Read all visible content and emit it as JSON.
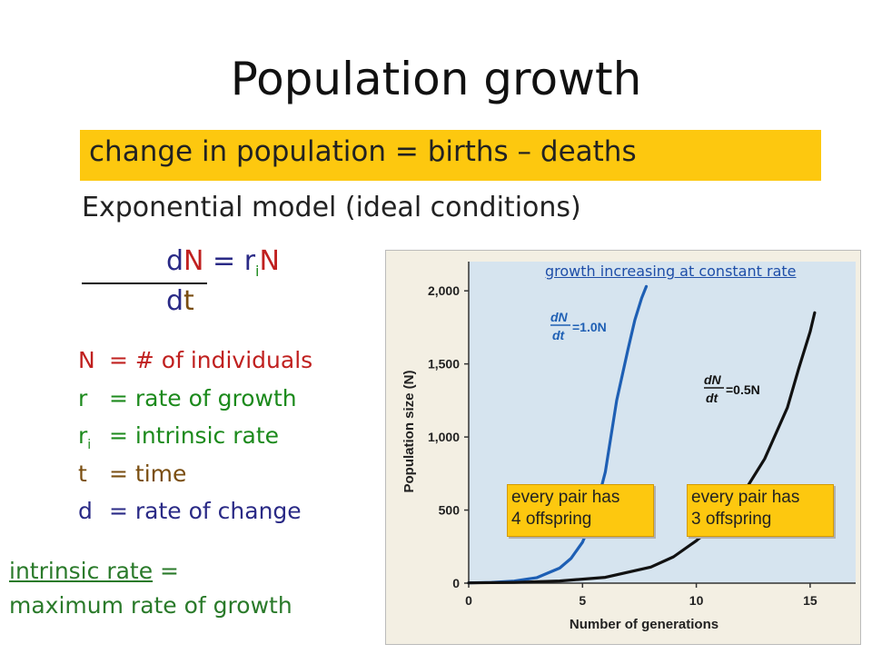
{
  "slide": {
    "title": "Population growth",
    "highlight": "change in population = births – deaths",
    "subtitle": "Exponential model (ideal conditions)",
    "equation": {
      "dN_d": "d",
      "dN_N": "N",
      "eq": " = r",
      "sub_i": "i",
      "N2": "N",
      "dt_d": "d",
      "dt_t": "t"
    },
    "definitions": [
      {
        "sym": "N",
        "sub": "",
        "text": "= # of individuals"
      },
      {
        "sym": "r",
        "sub": "",
        "text": "= rate of growth"
      },
      {
        "sym": "r",
        "sub": "i",
        "text": "= intrinsic rate"
      },
      {
        "sym": "t",
        "sub": "",
        "text": "= time"
      },
      {
        "sym": "d",
        "sub": "",
        "text": "= rate of change"
      }
    ],
    "intrinsic": {
      "term": "intrinsic rate",
      "eq": " =",
      "line2": "maximum rate of growth"
    },
    "growth_note": "growth increasing at constant rate",
    "callouts": [
      {
        "line1": "every pair has",
        "line2": "4 offspring"
      },
      {
        "line1": "every pair has",
        "line2": "3 offspring"
      }
    ],
    "colors": {
      "highlight": "#fdc80f",
      "blue_curve": "#1e5fb4",
      "black_curve": "#111111",
      "plot_bg": "#d6e4ef"
    }
  },
  "chart_data": {
    "type": "line",
    "xlabel": "Number of generations",
    "ylabel": "Population size (N)",
    "xlim": [
      0,
      17
    ],
    "ylim": [
      0,
      2200
    ],
    "xticks": [
      0,
      5,
      10,
      15
    ],
    "yticks": [
      0,
      500,
      1000,
      1500,
      2000
    ],
    "ytick_labels": [
      "0",
      "500",
      "1,000",
      "1,500",
      "2,000"
    ],
    "series": [
      {
        "name": "dN/dt = 1.0N",
        "label_main": "dN",
        "label_den": "dt",
        "label_rhs": "=1.0N",
        "color": "#1e5fb4",
        "x": [
          0,
          1,
          2,
          3,
          4,
          4.5,
          5,
          5.5,
          6,
          6.5,
          7,
          7.3,
          7.6,
          7.8
        ],
        "y": [
          2,
          5,
          14,
          38,
          103,
          170,
          280,
          460,
          760,
          1250,
          1600,
          1800,
          1950,
          2030
        ]
      },
      {
        "name": "dN/dt = 0.5N",
        "label_main": "dN",
        "label_den": "dt",
        "label_rhs": "=0.5N",
        "color": "#111111",
        "x": [
          0,
          2,
          4,
          6,
          8,
          9,
          10,
          11,
          12,
          13,
          14,
          14.5,
          15,
          15.2
        ],
        "y": [
          2,
          5,
          15,
          40,
          110,
          180,
          290,
          420,
          600,
          850,
          1200,
          1470,
          1720,
          1850
        ]
      }
    ]
  }
}
